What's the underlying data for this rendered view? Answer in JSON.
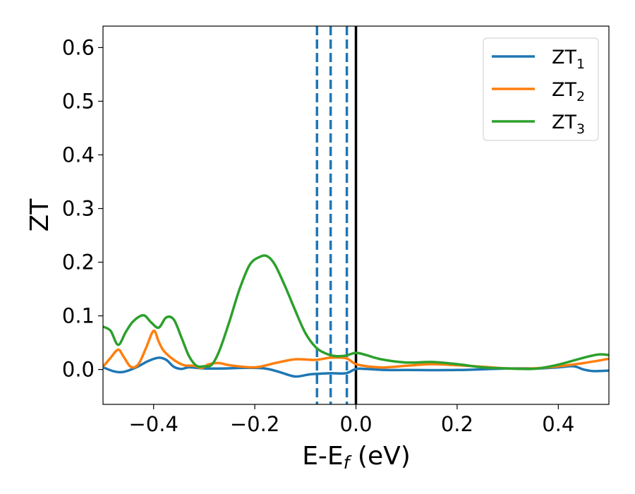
{
  "chart_data": {
    "type": "line",
    "title": "",
    "xlabel": "E-E",
    "xlabel_sub": "f",
    "xlabel_unit": " (eV)",
    "ylabel": "ZT",
    "xlim": [
      -0.5,
      0.5
    ],
    "ylim": [
      -0.065,
      0.64
    ],
    "x_ticks": [
      -0.4,
      -0.2,
      0.0,
      0.2,
      0.4
    ],
    "x_tick_labels": [
      "−0.4",
      "−0.2",
      "0.0",
      "0.2",
      "0.4"
    ],
    "y_ticks": [
      0.0,
      0.1,
      0.2,
      0.3,
      0.4,
      0.5,
      0.6
    ],
    "y_tick_labels": [
      "0.0",
      "0.1",
      "0.2",
      "0.3",
      "0.4",
      "0.5",
      "0.6"
    ],
    "grid": false,
    "legend_position": "top-right",
    "reference_lines": {
      "solid": {
        "x": 0.0,
        "color": "#000000"
      },
      "dashed": {
        "x": [
          -0.077,
          -0.05,
          -0.018
        ],
        "color": "#1f77b4"
      }
    },
    "series": [
      {
        "name": "ZT",
        "name_sub": "1",
        "color": "#1f77b4",
        "x": [
          -0.5,
          -0.48,
          -0.465,
          -0.45,
          -0.43,
          -0.41,
          -0.39,
          -0.375,
          -0.36,
          -0.345,
          -0.33,
          -0.3,
          -0.26,
          -0.22,
          -0.18,
          -0.15,
          -0.12,
          -0.09,
          -0.05,
          -0.02,
          0.0,
          0.02,
          0.06,
          0.1,
          0.2,
          0.3,
          0.36,
          0.4,
          0.43,
          0.45,
          0.47,
          0.5
        ],
        "values": [
          0.004,
          -0.003,
          -0.005,
          -0.002,
          0.006,
          0.016,
          0.022,
          0.018,
          0.005,
          0.001,
          0.004,
          0.002,
          0.002,
          0.003,
          0.002,
          -0.005,
          -0.013,
          -0.009,
          -0.007,
          -0.007,
          0.001,
          0.001,
          -0.001,
          -0.001,
          -0.001,
          0.002,
          0.002,
          0.004,
          0.006,
          0.0,
          -0.003,
          -0.002
        ]
      },
      {
        "name": "ZT",
        "name_sub": "2",
        "color": "#ff7f0e",
        "x": [
          -0.5,
          -0.485,
          -0.47,
          -0.46,
          -0.445,
          -0.43,
          -0.415,
          -0.4,
          -0.39,
          -0.38,
          -0.36,
          -0.34,
          -0.32,
          -0.305,
          -0.29,
          -0.27,
          -0.25,
          -0.2,
          -0.16,
          -0.12,
          -0.08,
          -0.05,
          -0.02,
          0.0,
          0.03,
          0.06,
          0.1,
          0.15,
          0.2,
          0.25,
          0.3,
          0.35,
          0.4,
          0.45,
          0.5
        ],
        "values": [
          0.005,
          0.022,
          0.037,
          0.025,
          0.005,
          0.01,
          0.04,
          0.072,
          0.052,
          0.035,
          0.018,
          0.008,
          0.007,
          0.003,
          0.01,
          0.012,
          0.008,
          0.004,
          0.012,
          0.019,
          0.018,
          0.022,
          0.021,
          0.01,
          0.005,
          0.004,
          0.007,
          0.01,
          0.008,
          0.005,
          0.002,
          0.002,
          0.006,
          0.012,
          0.02
        ]
      },
      {
        "name": "ZT",
        "name_sub": "3",
        "color": "#2ca02c",
        "x": [
          -0.5,
          -0.485,
          -0.47,
          -0.455,
          -0.44,
          -0.42,
          -0.405,
          -0.39,
          -0.375,
          -0.36,
          -0.345,
          -0.33,
          -0.315,
          -0.3,
          -0.285,
          -0.27,
          -0.25,
          -0.23,
          -0.21,
          -0.19,
          -0.175,
          -0.16,
          -0.14,
          -0.12,
          -0.1,
          -0.08,
          -0.06,
          -0.04,
          -0.02,
          0.0,
          0.02,
          0.05,
          0.1,
          0.15,
          0.2,
          0.25,
          0.3,
          0.33,
          0.36,
          0.4,
          0.45,
          0.48,
          0.5
        ],
        "values": [
          0.08,
          0.072,
          0.046,
          0.07,
          0.09,
          0.101,
          0.088,
          0.078,
          0.097,
          0.093,
          0.06,
          0.025,
          0.007,
          0.006,
          0.009,
          0.035,
          0.09,
          0.15,
          0.195,
          0.21,
          0.211,
          0.195,
          0.155,
          0.11,
          0.068,
          0.042,
          0.03,
          0.025,
          0.026,
          0.031,
          0.027,
          0.019,
          0.013,
          0.014,
          0.01,
          0.004,
          0.002,
          0.001,
          0.002,
          0.009,
          0.022,
          0.028,
          0.027
        ]
      }
    ]
  }
}
